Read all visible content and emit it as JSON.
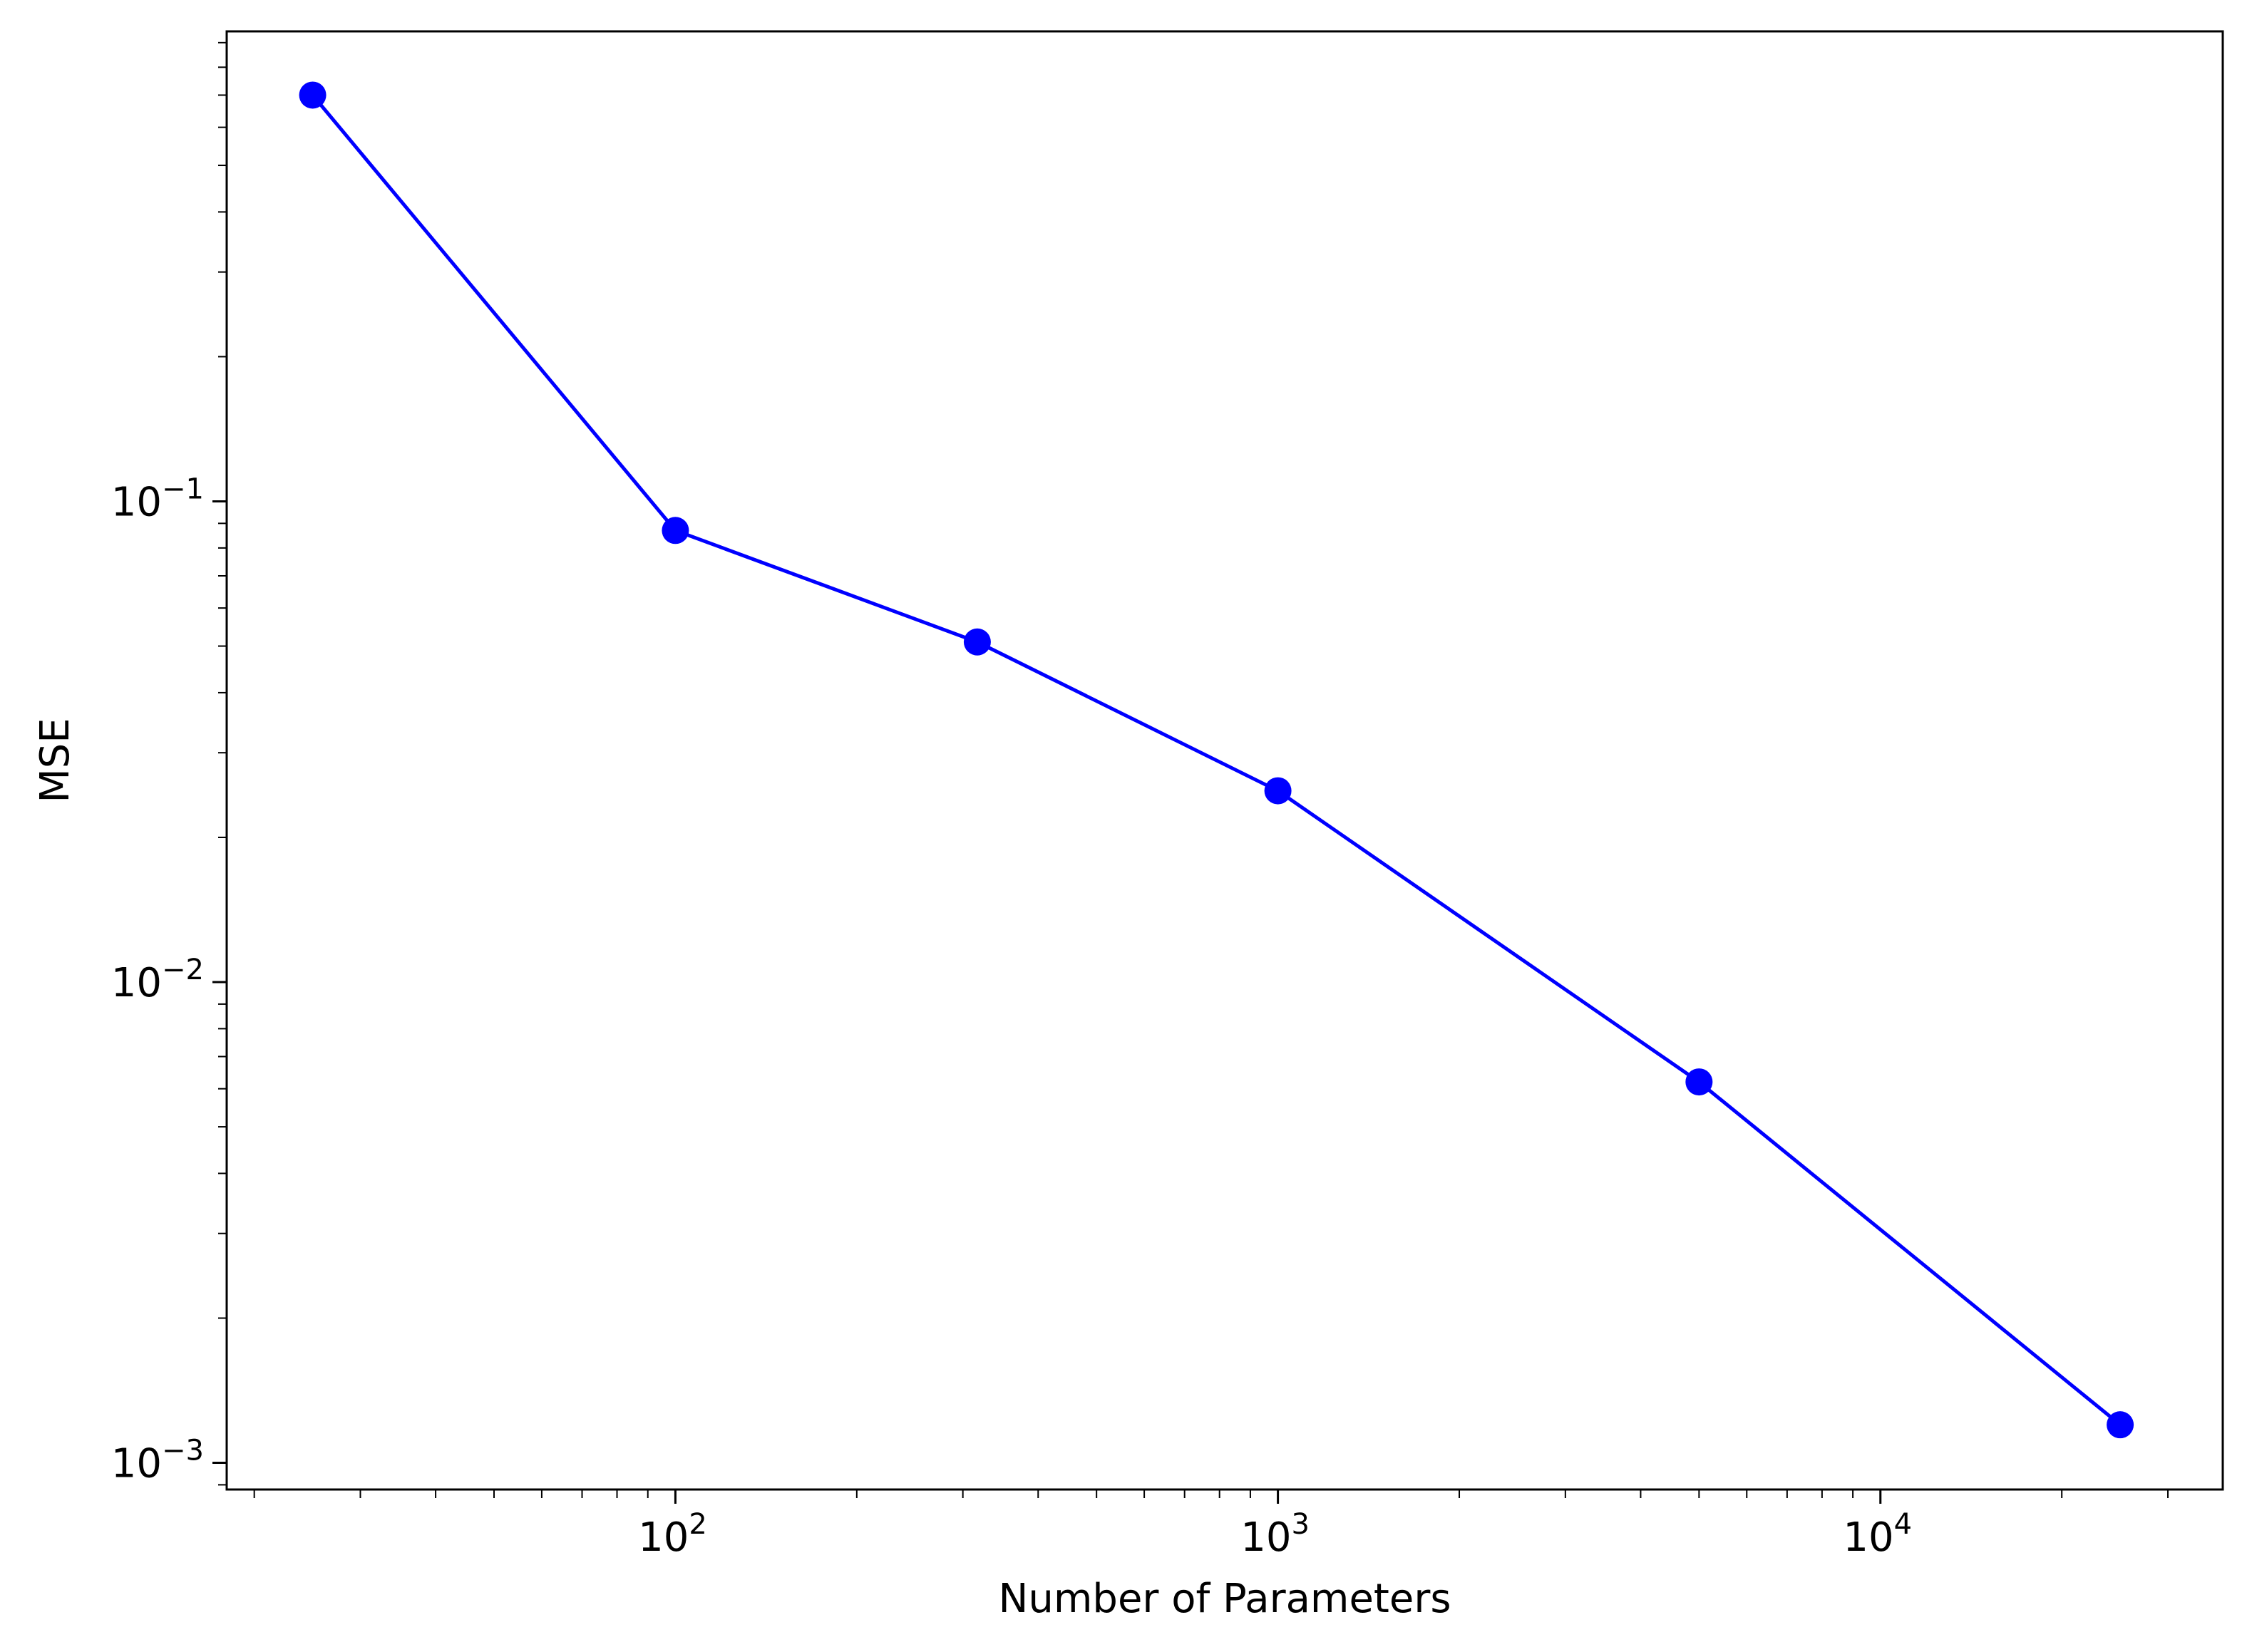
{
  "chart_data": {
    "type": "line",
    "title": "",
    "xlabel": "Number of Parameters",
    "ylabel": "MSE",
    "xscale": "log",
    "yscale": "log",
    "xlim": [
      18,
      37000
    ],
    "ylim": [
      0.00088,
      0.95
    ],
    "grid": false,
    "legend": "none",
    "x_ticks": [
      {
        "value": 100,
        "base": "10",
        "exp": "2"
      },
      {
        "value": 1000,
        "base": "10",
        "exp": "3"
      },
      {
        "value": 10000,
        "base": "10",
        "exp": "4"
      }
    ],
    "y_ticks": [
      {
        "value": 0.001,
        "base": "10",
        "exp": "−3"
      },
      {
        "value": 0.01,
        "base": "10",
        "exp": "−2"
      },
      {
        "value": 0.1,
        "base": "10",
        "exp": "−1"
      }
    ],
    "series": [
      {
        "color": "#0000ff",
        "marker": "circle",
        "x": [
          25,
          100,
          317,
          1000,
          5000,
          25000
        ],
        "y": [
          0.7,
          0.087,
          0.051,
          0.025,
          0.0062,
          0.0012
        ]
      }
    ]
  }
}
